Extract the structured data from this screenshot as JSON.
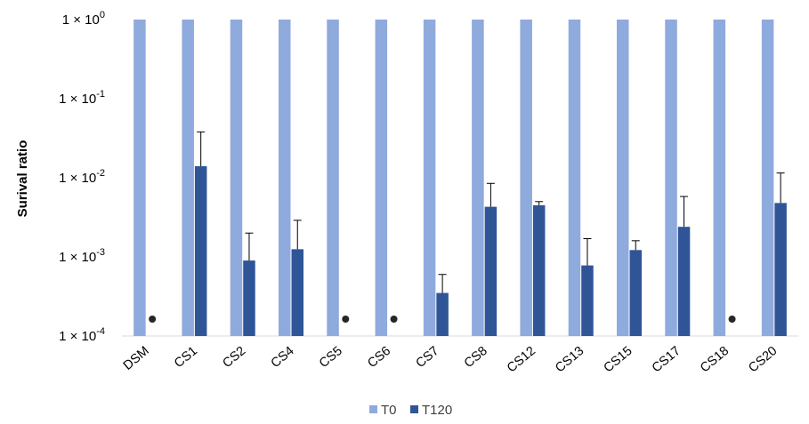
{
  "chart_data": {
    "type": "bar",
    "title": "",
    "xlabel": "",
    "ylabel": "Surival ratio",
    "y_scale": "log",
    "ylim": [
      0.0001,
      1
    ],
    "y_ticks": [
      {
        "value": 1,
        "base": "1 × 10",
        "exp": "0"
      },
      {
        "value": 0.1,
        "base": "1 × 10",
        "exp": "-1"
      },
      {
        "value": 0.01,
        "base": "1 × 10",
        "exp": "-2"
      },
      {
        "value": 0.001,
        "base": "1 × 10",
        "exp": "-3"
      },
      {
        "value": 0.0001,
        "base": "1 × 10",
        "exp": "-4"
      }
    ],
    "grid": false,
    "legend_position": "bottom",
    "categories": [
      "DSM",
      "CS1",
      "CS2",
      "CS4",
      "CS5",
      "CS6",
      "CS7",
      "CS8",
      "CS12",
      "CS13",
      "CS15",
      "CS17",
      "CS18",
      "CS20"
    ],
    "series": [
      {
        "name": "T0",
        "color": "#8faadc",
        "values": [
          1,
          1,
          1,
          1,
          1,
          1,
          1,
          1,
          1,
          1,
          1,
          1,
          1,
          1
        ],
        "error_upper": [
          null,
          null,
          null,
          null,
          null,
          null,
          null,
          null,
          null,
          null,
          null,
          null,
          null,
          null
        ]
      },
      {
        "name": "T120",
        "color": "#2f5597",
        "values": [
          null,
          0.014,
          0.0009,
          0.00125,
          null,
          null,
          0.00035,
          0.0043,
          0.0045,
          0.00078,
          0.00122,
          0.0024,
          null,
          0.0048
        ],
        "error_upper": [
          null,
          0.038,
          0.002,
          0.0029,
          null,
          null,
          0.0006,
          0.0085,
          0.005,
          0.0017,
          0.0016,
          0.0058,
          null,
          0.0115
        ]
      }
    ],
    "below_detection_markers": [
      "DSM",
      "CS5",
      "CS6",
      "CS18"
    ],
    "marker_color": "#262626"
  }
}
